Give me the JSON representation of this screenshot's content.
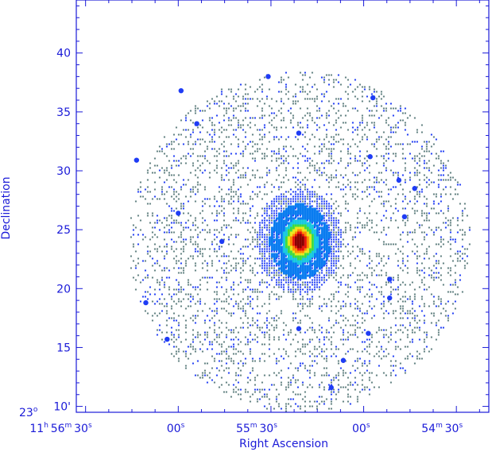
{
  "chart_data": {
    "type": "heatmap",
    "title": "",
    "xlabel": "Right Ascension",
    "ylabel": "Declination",
    "y_prefix": {
      "deg": "23",
      "deg_sup": "o"
    },
    "y_ticks": [
      {
        "value": 10,
        "label": "10",
        "suffix": "'"
      },
      {
        "value": 15,
        "label": "15",
        "suffix": ""
      },
      {
        "value": 20,
        "label": "20",
        "suffix": ""
      },
      {
        "value": 25,
        "label": "25",
        "suffix": ""
      },
      {
        "value": 30,
        "label": "30",
        "suffix": ""
      },
      {
        "value": 35,
        "label": "35",
        "suffix": ""
      },
      {
        "value": 40,
        "label": "40",
        "suffix": ""
      }
    ],
    "ylim": [
      9.5,
      44.5
    ],
    "x_ticks": [
      {
        "value": 4,
        "parts": [
          [
            "11",
            "h"
          ],
          [
            "56",
            "m"
          ],
          [
            "30",
            "s"
          ]
        ]
      },
      {
        "value": 3,
        "parts": [
          [
            "00",
            "s"
          ]
        ]
      },
      {
        "value": 2,
        "parts": [
          [
            "55",
            "m"
          ],
          [
            "30",
            "s"
          ]
        ]
      },
      {
        "value": 1,
        "parts": [
          [
            "00",
            "s"
          ]
        ]
      },
      {
        "value": 0,
        "parts": [
          [
            "54",
            "m"
          ],
          [
            "30",
            "s"
          ]
        ]
      }
    ],
    "xlim": [
      4.1,
      -0.35
    ],
    "colormap": [
      "#5f7f7f",
      "#1f3cf5",
      "#0a7cf0",
      "#16c8e0",
      "#3fdc3f",
      "#e8e81c",
      "#ff8a00",
      "#e8140a",
      "#8a0000"
    ],
    "emission": {
      "core_center": {
        "x": 1.7,
        "y": 24.1
      },
      "halo_radius_arcmin": 14.5
    },
    "point_sources": [
      {
        "x": 0.56,
        "y": 26.1
      },
      {
        "x": 0.62,
        "y": 29.2
      },
      {
        "x": 0.93,
        "y": 31.2
      },
      {
        "x": 0.9,
        "y": 36.2
      },
      {
        "x": 1.7,
        "y": 33.2
      },
      {
        "x": 2.03,
        "y": 38.0
      },
      {
        "x": 2.8,
        "y": 34.0
      },
      {
        "x": 2.97,
        "y": 36.8
      },
      {
        "x": 3.45,
        "y": 30.9
      },
      {
        "x": 3.0,
        "y": 26.4
      },
      {
        "x": 2.53,
        "y": 24.0
      },
      {
        "x": 3.12,
        "y": 15.7
      },
      {
        "x": 3.35,
        "y": 18.8
      },
      {
        "x": 0.72,
        "y": 20.8
      },
      {
        "x": 0.72,
        "y": 19.2
      },
      {
        "x": 0.95,
        "y": 16.2
      },
      {
        "x": 1.22,
        "y": 13.9
      },
      {
        "x": 1.35,
        "y": 11.6
      },
      {
        "x": 1.7,
        "y": 16.6
      },
      {
        "x": 0.45,
        "y": 28.5
      }
    ]
  }
}
